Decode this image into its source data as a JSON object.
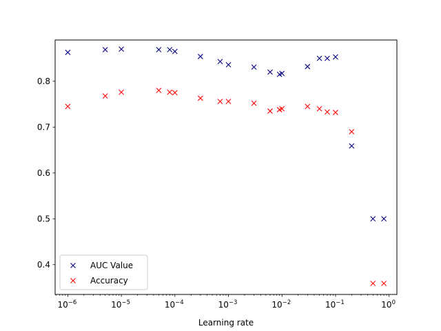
{
  "chart_data": {
    "type": "scatter",
    "title": "",
    "xlabel": "Learning rate",
    "ylabel": "",
    "xscale": "log",
    "xlim": [
      5.8e-07,
      1.4
    ],
    "ylim": [
      0.335,
      0.89
    ],
    "grid": false,
    "legend_position": "lower-left",
    "marker": "x",
    "x_ticks": [
      {
        "value": 1e-06,
        "base": "10",
        "exp": "−6"
      },
      {
        "value": 1e-05,
        "base": "10",
        "exp": "−5"
      },
      {
        "value": 0.0001,
        "base": "10",
        "exp": "−4"
      },
      {
        "value": 0.001,
        "base": "10",
        "exp": "−3"
      },
      {
        "value": 0.01,
        "base": "10",
        "exp": "−2"
      },
      {
        "value": 0.1,
        "base": "10",
        "exp": "−1"
      },
      {
        "value": 1,
        "base": "10",
        "exp": "0"
      }
    ],
    "y_ticks": [
      {
        "value": 0.4,
        "label": "0.4"
      },
      {
        "value": 0.5,
        "label": "0.5"
      },
      {
        "value": 0.6,
        "label": "0.6"
      },
      {
        "value": 0.7,
        "label": "0.7"
      },
      {
        "value": 0.8,
        "label": "0.8"
      }
    ],
    "x": [
      1e-06,
      5e-06,
      1e-05,
      5e-05,
      8e-05,
      0.0001,
      0.0003,
      0.0007,
      0.001,
      0.003,
      0.006,
      0.009,
      0.01,
      0.03,
      0.05,
      0.07,
      0.1,
      0.2,
      0.5,
      0.8
    ],
    "series": [
      {
        "name": "AUC Value",
        "color": "#000080",
        "values": [
          0.863,
          0.869,
          0.87,
          0.869,
          0.869,
          0.865,
          0.854,
          0.843,
          0.836,
          0.831,
          0.82,
          0.815,
          0.817,
          0.832,
          0.85,
          0.85,
          0.853,
          0.659,
          0.5,
          0.5
        ]
      },
      {
        "name": "Accuracy",
        "color": "#ff0000",
        "values": [
          0.745,
          0.768,
          0.776,
          0.78,
          0.776,
          0.775,
          0.763,
          0.756,
          0.756,
          0.752,
          0.735,
          0.738,
          0.74,
          0.745,
          0.74,
          0.733,
          0.732,
          0.69,
          0.359,
          0.359
        ]
      }
    ]
  }
}
